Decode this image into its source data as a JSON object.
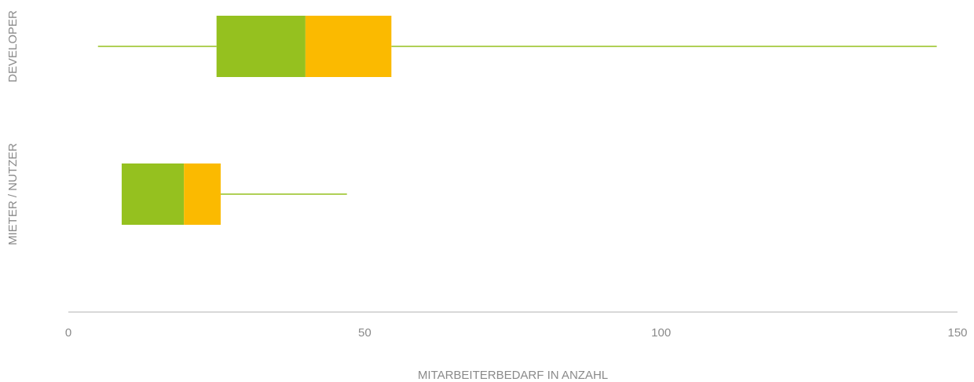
{
  "chart_data": {
    "type": "box",
    "x_label": "MITARBEITERBEDARF IN ANZAHL",
    "categories": [
      "DEVELOPER",
      "MIETER / NUTZER"
    ],
    "boxes": [
      {
        "min": 5,
        "q1": 25,
        "median": 40,
        "q3": 54.5,
        "max": 146.5
      },
      {
        "min": 9,
        "q1": 9,
        "median": 19.5,
        "q3": 25.7,
        "max": 47
      }
    ],
    "colors": {
      "lower": "#95c11f",
      "upper": "#fbba00",
      "whisker": "#95c11f"
    },
    "xlim": [
      0,
      150
    ],
    "xticks": [
      0,
      50,
      100,
      150
    ],
    "grid": false
  }
}
